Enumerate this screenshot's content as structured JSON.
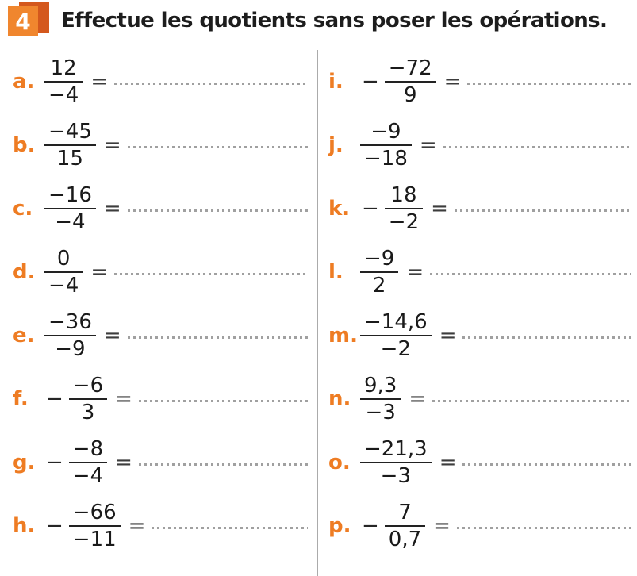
{
  "header": {
    "number": "4",
    "title": "Effectue les quotients sans poser les opérations."
  },
  "equals": "=",
  "minus": "−",
  "colors": {
    "accent": "#ee7c23",
    "text": "#1a1a1a",
    "equals": "#3c3c3c",
    "dots": "#a0a0a0",
    "divider": "#ababab",
    "badge-front": "#f0862e",
    "badge-back": "#d4581d"
  },
  "columns": {
    "left": [
      {
        "label": "a.",
        "neg": false,
        "num": "12",
        "den": "−4"
      },
      {
        "label": "b.",
        "neg": false,
        "num": "−45",
        "den": "15"
      },
      {
        "label": "c.",
        "neg": false,
        "num": "−16",
        "den": "−4"
      },
      {
        "label": "d.",
        "neg": false,
        "num": "0",
        "den": "−4"
      },
      {
        "label": "e.",
        "neg": false,
        "num": "−36",
        "den": "−9"
      },
      {
        "label": "f.",
        "neg": true,
        "num": "−6",
        "den": "3"
      },
      {
        "label": "g.",
        "neg": true,
        "num": "−8",
        "den": "−4"
      },
      {
        "label": "h.",
        "neg": true,
        "num": "−66",
        "den": "−11"
      }
    ],
    "right": [
      {
        "label": "i.",
        "neg": true,
        "num": "−72",
        "den": "9"
      },
      {
        "label": "j.",
        "neg": false,
        "num": "−9",
        "den": "−18"
      },
      {
        "label": "k.",
        "neg": true,
        "num": "18",
        "den": "−2"
      },
      {
        "label": "l.",
        "neg": false,
        "num": "−9",
        "den": "2"
      },
      {
        "label": "m.",
        "neg": false,
        "num": "−14,6",
        "den": "−2"
      },
      {
        "label": "n.",
        "neg": false,
        "num": "9,3",
        "den": "−3"
      },
      {
        "label": "o.",
        "neg": false,
        "num": "−21,3",
        "den": "−3"
      },
      {
        "label": "p.",
        "neg": true,
        "num": "7",
        "den": "0,7"
      }
    ]
  }
}
